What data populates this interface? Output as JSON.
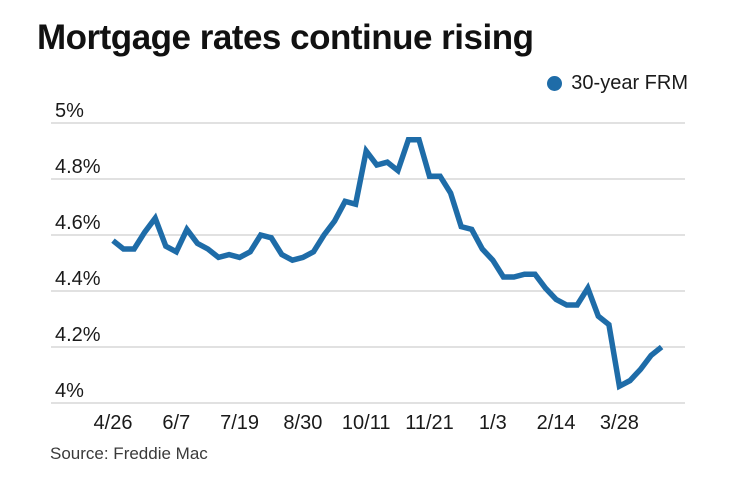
{
  "header": {
    "title": "Mortgage rates continue rising"
  },
  "legend": {
    "label": "30-year FRM"
  },
  "footer": {
    "source": "Source: Freddie Mac"
  },
  "colors": {
    "line": "#1e6ca8",
    "legend_dot": "#1e6ca8",
    "grid": "#c3c3c3",
    "axis_text": "#1a1a1a",
    "title_text": "#111111",
    "source_text": "#3a3a3a",
    "background": "#ffffff"
  },
  "chart_data": {
    "type": "line",
    "title": "Mortgage rates continue rising",
    "xlabel": "",
    "ylabel": "",
    "ylim": [
      4,
      5
    ],
    "grid": "horizontal-only",
    "legend_position": "top-right",
    "legend_entries": [
      "30-year FRM"
    ],
    "x": [
      "4/26",
      "5/3",
      "5/10",
      "5/17",
      "5/24",
      "5/31",
      "6/7",
      "6/14",
      "6/21",
      "6/28",
      "7/5",
      "7/12",
      "7/19",
      "7/26",
      "8/2",
      "8/9",
      "8/16",
      "8/23",
      "8/30",
      "9/6",
      "9/13",
      "9/20",
      "9/27",
      "10/4",
      "10/11",
      "10/18",
      "10/25",
      "11/1",
      "11/8",
      "11/15",
      "11/21",
      "11/29",
      "12/6",
      "12/13",
      "12/20",
      "12/27",
      "1/3",
      "1/10",
      "1/17",
      "1/24",
      "1/31",
      "2/7",
      "2/14",
      "2/21",
      "2/28",
      "3/7",
      "3/14",
      "3/21",
      "3/28",
      "4/4",
      "4/11",
      "4/18",
      "4/25"
    ],
    "series": [
      {
        "name": "30-year FRM",
        "values": [
          4.58,
          4.55,
          4.55,
          4.61,
          4.66,
          4.56,
          4.54,
          4.62,
          4.57,
          4.55,
          4.52,
          4.53,
          4.52,
          4.54,
          4.6,
          4.59,
          4.53,
          4.51,
          4.52,
          4.54,
          4.6,
          4.65,
          4.72,
          4.71,
          4.9,
          4.85,
          4.86,
          4.83,
          4.94,
          4.94,
          4.81,
          4.81,
          4.75,
          4.63,
          4.62,
          4.55,
          4.51,
          4.45,
          4.45,
          4.46,
          4.46,
          4.41,
          4.37,
          4.35,
          4.35,
          4.41,
          4.31,
          4.28,
          4.06,
          4.08,
          4.12,
          4.17,
          4.2
        ]
      }
    ],
    "x_ticks": [
      {
        "index": 0,
        "label": "4/26"
      },
      {
        "index": 6,
        "label": "6/7"
      },
      {
        "index": 12,
        "label": "7/19"
      },
      {
        "index": 18,
        "label": "8/30"
      },
      {
        "index": 24,
        "label": "10/11"
      },
      {
        "index": 30,
        "label": "11/21"
      },
      {
        "index": 36,
        "label": "1/3"
      },
      {
        "index": 42,
        "label": "2/14"
      },
      {
        "index": 48,
        "label": "3/28"
      }
    ],
    "y_ticks": [
      {
        "value": 5.0,
        "label": "5%"
      },
      {
        "value": 4.8,
        "label": "4.8%"
      },
      {
        "value": 4.6,
        "label": "4.6%"
      },
      {
        "value": 4.4,
        "label": "4.4%"
      },
      {
        "value": 4.2,
        "label": "4.2%"
      },
      {
        "value": 4.0,
        "label": "4%"
      }
    ]
  }
}
